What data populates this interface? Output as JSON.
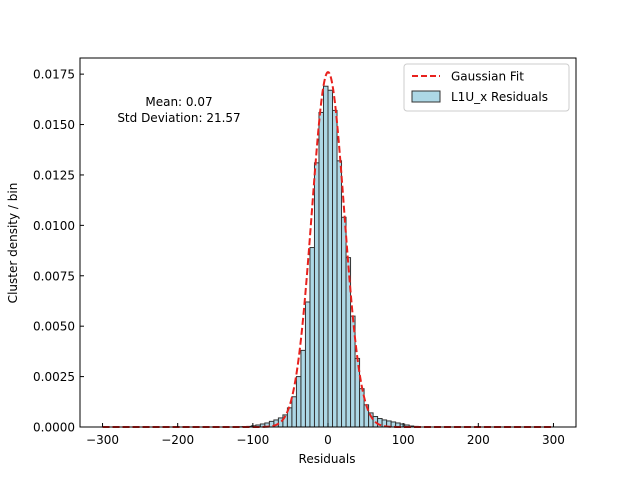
{
  "chart_data": {
    "type": "bar",
    "xlabel": "Residuals",
    "ylabel": "Cluster density / bin",
    "xlim": [
      -330,
      330
    ],
    "ylim": [
      0,
      0.0183
    ],
    "x_ticks": [
      -300,
      -200,
      -100,
      0,
      100,
      200,
      300
    ],
    "x_tick_labels": [
      "−300",
      "−200",
      "−100",
      "0",
      "100",
      "200",
      "300"
    ],
    "y_ticks": [
      0,
      0.0025,
      0.005,
      0.0075,
      0.01,
      0.0125,
      0.015,
      0.0175
    ],
    "y_tick_labels": [
      "0.0000",
      "0.0025",
      "0.0050",
      "0.0075",
      "0.0100",
      "0.0125",
      "0.0150",
      "0.0175"
    ],
    "annotation": {
      "mean_text": "Mean: 0.07",
      "std_text": "Std Deviation: 21.57"
    },
    "legend": {
      "placement": "top-right",
      "entries": [
        {
          "label": "Gaussian Fit",
          "kind": "line",
          "color": "#e8211d",
          "style": "dashed"
        },
        {
          "label": "L1U_x Residuals",
          "kind": "patch",
          "color": "#add8e6",
          "edge": "#333333"
        }
      ]
    },
    "histogram": {
      "name": "L1U_x Residuals",
      "bin_width": 6,
      "bin_left_edges": [
        -120,
        -114,
        -108,
        -102,
        -96,
        -90,
        -84,
        -78,
        -72,
        -66,
        -60,
        -54,
        -48,
        -42,
        -36,
        -30,
        -24,
        -18,
        -12,
        -6,
        0,
        6,
        12,
        18,
        24,
        30,
        36,
        42,
        48,
        54,
        60,
        66,
        72,
        78,
        84,
        90,
        96,
        102,
        108,
        114
      ],
      "values": [
        1e-05,
        2e-05,
        3e-05,
        6e-05,
        0.0001,
        0.00015,
        0.0002,
        0.00028,
        0.00035,
        0.00045,
        0.0006,
        0.00095,
        0.0015,
        0.0025,
        0.0038,
        0.0062,
        0.0089,
        0.0131,
        0.0156,
        0.0169,
        0.0167,
        0.0157,
        0.0132,
        0.0104,
        0.0084,
        0.0055,
        0.0034,
        0.0019,
        0.0011,
        0.0007,
        0.00052,
        0.00042,
        0.00035,
        0.0003,
        0.00025,
        0.0002,
        0.00015,
        0.0001,
        5e-05,
        3e-05
      ],
      "fill": "#add8e6",
      "edge": "#333333"
    },
    "fit": {
      "name": "Gaussian Fit",
      "distribution": "gaussian",
      "mean": 0.07,
      "std": 21.57,
      "peak": 0.0176,
      "x_range": [
        -300,
        300
      ],
      "color": "#e8211d"
    }
  }
}
